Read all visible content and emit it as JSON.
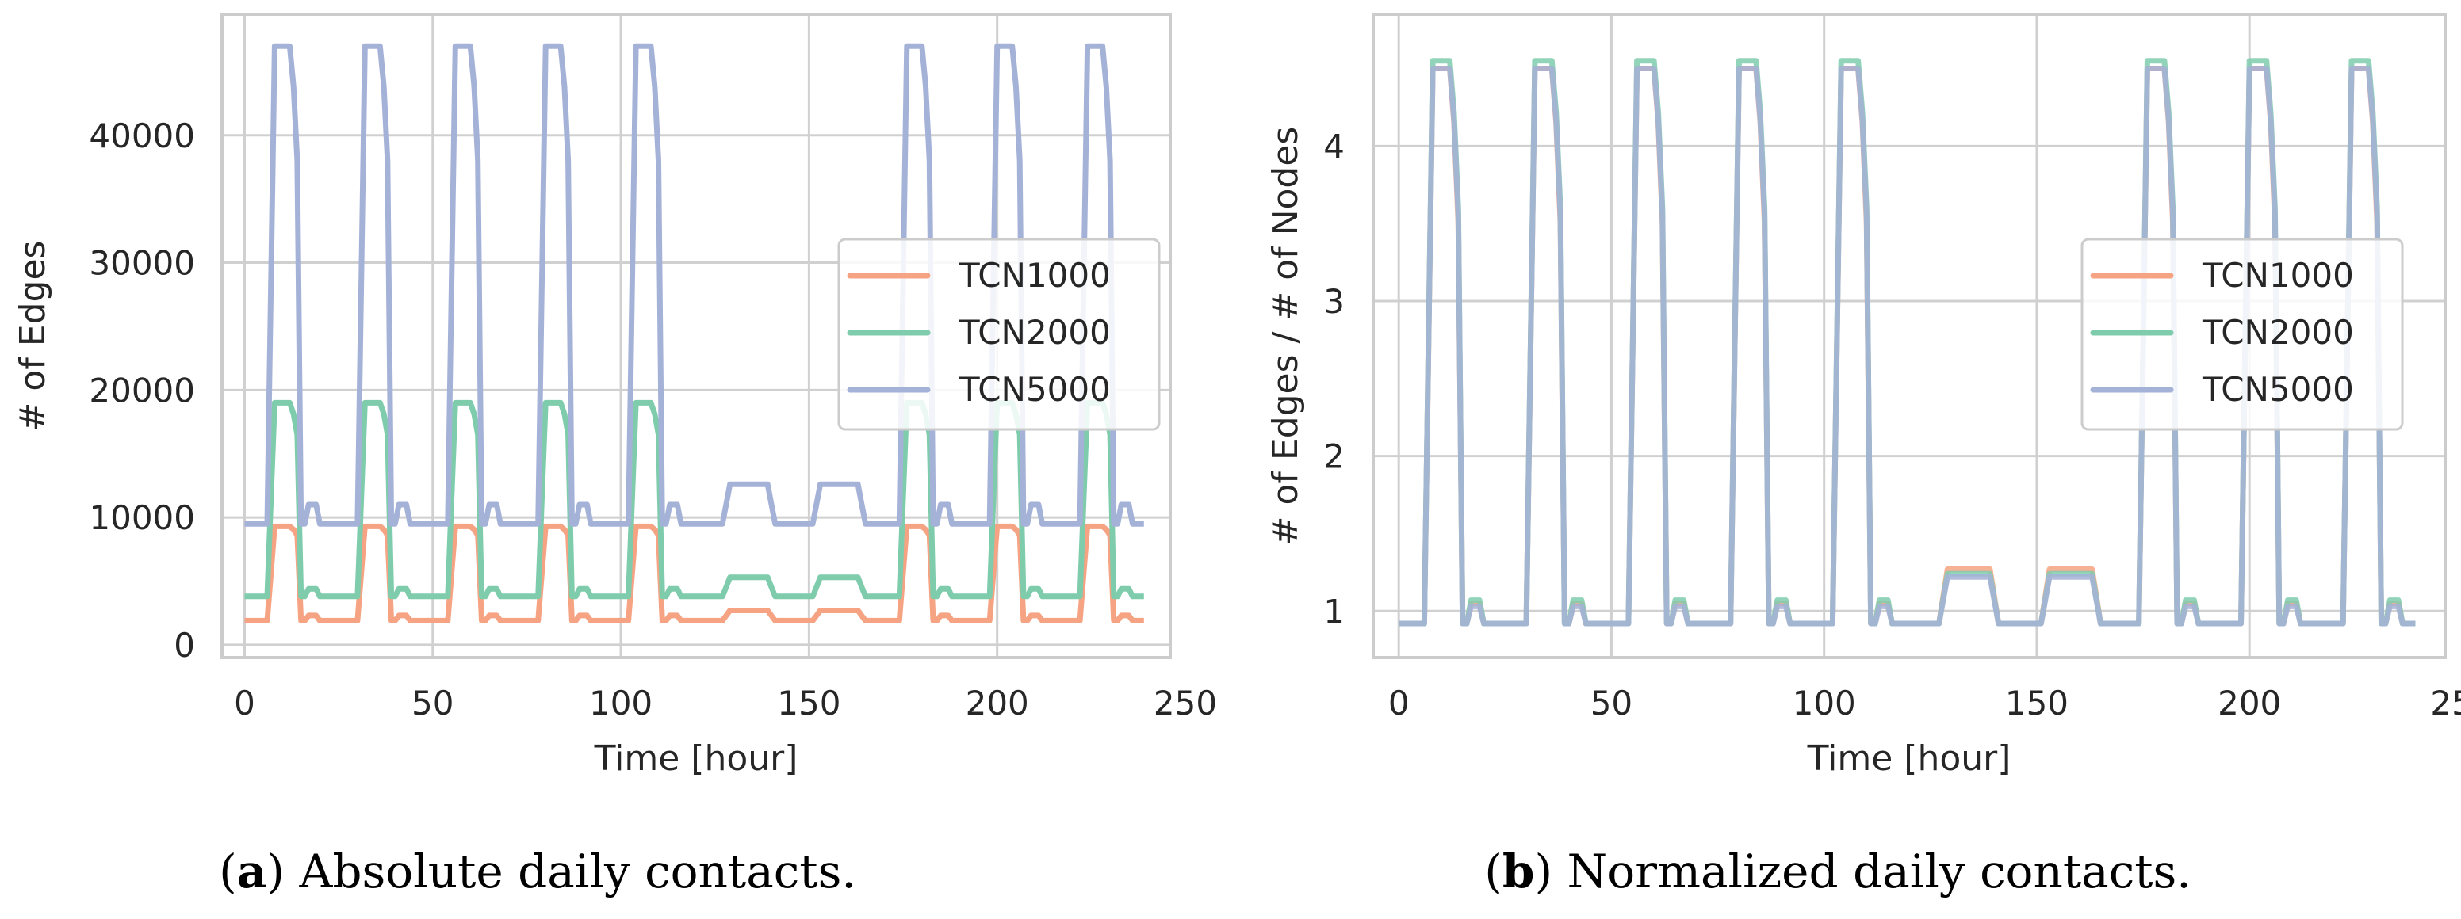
{
  "colors": {
    "tcn1000": "#f5a383",
    "tcn2000": "#7fccad",
    "tcn5000": "#a5b2d8",
    "grid": "#d0d0d0",
    "frame": "#cccccc",
    "text": "#262626"
  },
  "captions": [
    {
      "letter": "a",
      "paren_open": "(",
      "paren_close": ")",
      "text": " Absolute daily contacts."
    },
    {
      "letter": "b",
      "paren_open": "(",
      "paren_close": ")",
      "text": " Normalized daily contacts."
    }
  ],
  "chart_data": [
    {
      "type": "line",
      "panel": "a",
      "title": "",
      "xlabel": "Time [hour]",
      "ylabel": "# of Edges",
      "xlim": [
        -6,
        246
      ],
      "ylim": [
        -1000,
        49500
      ],
      "xticks": [
        0,
        50,
        100,
        150,
        200,
        250
      ],
      "xtick_labels": [
        "0",
        "50",
        "100",
        "150",
        "200",
        "250"
      ],
      "yticks": [
        0,
        10000,
        20000,
        30000,
        40000
      ],
      "ytick_labels": [
        "0",
        "10000",
        "20000",
        "30000",
        "40000"
      ],
      "grid": true,
      "legend": "center-right",
      "series": [
        {
          "name": "TCN1000",
          "label": "TCN1000",
          "color_key": "tcn1000",
          "base": 1900,
          "peak": 9300,
          "dip": 8600,
          "wobble": 2300,
          "weekend": 2700
        },
        {
          "name": "TCN2000",
          "label": "TCN2000",
          "color_key": "tcn2000",
          "base": 3800,
          "peak": 19000,
          "dip": 16500,
          "wobble": 4400,
          "weekend": 5300
        },
        {
          "name": "TCN5000",
          "label": "TCN5000",
          "color_key": "tcn5000",
          "base": 9500,
          "peak": 47000,
          "dip": 38000,
          "wobble": 11000,
          "weekend": 12600
        }
      ]
    },
    {
      "type": "line",
      "panel": "b",
      "title": "",
      "xlabel": "Time [hour]",
      "ylabel": "# of Edges / # of Nodes",
      "xlim": [
        -6,
        246
      ],
      "ylim": [
        0.7,
        4.85
      ],
      "xticks": [
        0,
        50,
        100,
        150,
        200,
        250
      ],
      "xtick_labels": [
        "0",
        "50",
        "100",
        "150",
        "200",
        "250"
      ],
      "yticks": [
        1,
        2,
        3,
        4
      ],
      "ytick_labels": [
        "1",
        "2",
        "3",
        "4"
      ],
      "grid": true,
      "legend": "center-right",
      "series": [
        {
          "name": "TCN1000",
          "label": "TCN1000",
          "color_key": "tcn1000",
          "base": 0.92,
          "peak": 4.5,
          "dip": 3.5,
          "wobble": 1.05,
          "weekend": 1.27
        },
        {
          "name": "TCN2000",
          "label": "TCN2000",
          "color_key": "tcn2000",
          "base": 0.92,
          "peak": 4.55,
          "dip": 3.6,
          "wobble": 1.07,
          "weekend": 1.24
        },
        {
          "name": "TCN5000",
          "label": "TCN5000",
          "color_key": "tcn5000",
          "base": 0.92,
          "peak": 4.5,
          "dip": 3.55,
          "wobble": 1.03,
          "weekend": 1.22
        }
      ]
    }
  ],
  "schedule": {
    "hours": 240,
    "weekday_starts": [
      0,
      24,
      48,
      72,
      96,
      168,
      192,
      216
    ],
    "weekend_starts": [
      120,
      144
    ]
  }
}
